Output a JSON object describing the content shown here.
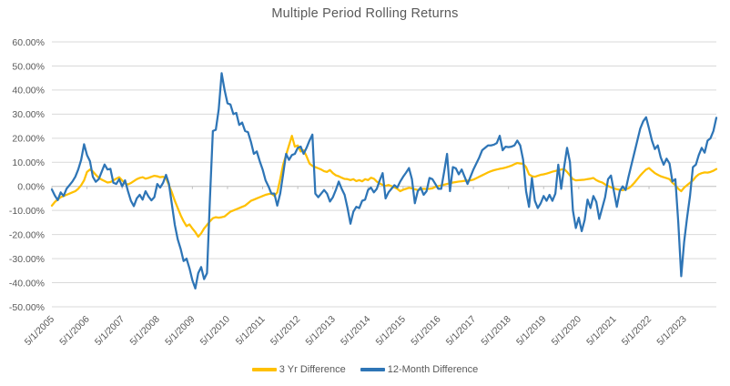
{
  "chart_data": {
    "type": "line",
    "title": "Multiple Period Rolling Returns",
    "x_frequency": "monthly",
    "x_start": "5/1/2005",
    "x_end": "4/1/2024",
    "x_tick_labels": [
      "5/1/2005",
      "5/1/2006",
      "5/1/2007",
      "5/1/2008",
      "5/1/2009",
      "5/1/2010",
      "5/1/2011",
      "5/1/2012",
      "5/1/2013",
      "5/1/2014",
      "5/1/2015",
      "5/1/2016",
      "5/1/2017",
      "5/1/2018",
      "5/1/2019",
      "5/1/2020",
      "5/1/2021",
      "5/1/2022",
      "5/1/2023"
    ],
    "y_tick_labels": [
      "60.00%",
      "50.00%",
      "40.00%",
      "30.00%",
      "20.00%",
      "10.00%",
      "0.00%",
      "-10.00%",
      "-20.00%",
      "-30.00%",
      "-40.00%",
      "-50.00%"
    ],
    "ylim": [
      -50,
      60
    ],
    "y_step": 10,
    "grid": true,
    "legend_position": "bottom",
    "colors": {
      "grid": "#D9D9D9",
      "axis": "#BFBFBF",
      "text": "#595959",
      "background": "#FFFFFF"
    },
    "series": [
      {
        "name": "3 Yr Difference",
        "color": "#FFC000",
        "values_unit": "percent",
        "values": [
          -8,
          -6.5,
          -5.5,
          -4.5,
          -4,
          -3.5,
          -3,
          -2.5,
          -2,
          -1,
          0.5,
          2.5,
          6,
          7,
          6.2,
          4.8,
          3.6,
          2.8,
          2.2,
          1.6,
          1.8,
          2.5,
          3.2,
          3.8,
          2.5,
          1.2,
          0.8,
          1.4,
          2.2,
          3,
          3.5,
          3.8,
          3.2,
          3.5,
          4,
          4.4,
          4.2,
          3.8,
          4,
          3.4,
          0.5,
          -2.5,
          -6,
          -9,
          -12,
          -14.5,
          -16.5,
          -15.8,
          -17.5,
          -19,
          -20.9,
          -19.5,
          -17.5,
          -16,
          -14.5,
          -13.2,
          -12.8,
          -13,
          -12.8,
          -12.5,
          -11.5,
          -10.5,
          -10,
          -9.5,
          -9,
          -8.5,
          -8,
          -7,
          -6,
          -5.5,
          -5,
          -4.5,
          -4,
          -3.5,
          -3.2,
          -3,
          -4,
          -2.5,
          3,
          9,
          13,
          17,
          21,
          16.5,
          17,
          14.5,
          15,
          12.5,
          9.5,
          8.5,
          8,
          7.5,
          7,
          6.3,
          6,
          6.8,
          5.5,
          4.6,
          4.2,
          3.6,
          3.1,
          3,
          2.6,
          3,
          2.2,
          2.6,
          2.1,
          3,
          2.6,
          3.6,
          3.2,
          2,
          1.2,
          0.6,
          0.2,
          0.6,
          0.1,
          -0.4,
          -1,
          -2,
          -1.4,
          -1,
          -0.6,
          -0.8,
          -1.2,
          -1.5,
          -1.2,
          -1,
          -1.1,
          -1,
          -0.8,
          -0.2,
          0.1,
          0.4,
          0.7,
          1,
          1.3,
          1.6,
          1.8,
          2,
          2.1,
          2.3,
          2.4,
          2.5,
          2.8,
          3.4,
          4,
          4.6,
          5.2,
          5.8,
          6.3,
          6.7,
          7,
          7.3,
          7.5,
          7.8,
          8.2,
          8.6,
          9.2,
          9.7,
          9.5,
          9.4,
          8,
          5,
          4.2,
          4,
          4.4,
          4.8,
          5,
          5.3,
          5.7,
          6.1,
          6.4,
          6.7,
          7,
          7.2,
          6,
          4.5,
          3,
          2.5,
          2.6,
          2.7,
          2.8,
          3,
          3.2,
          3.5,
          2.6,
          2,
          1.6,
          0.8,
          0.2,
          -0.4,
          -0.8,
          -1.2,
          -1.4,
          -1.6,
          -1.2,
          -0.8,
          0.2,
          1.5,
          3,
          4.5,
          5.8,
          7,
          7.6,
          6.5,
          5.5,
          4.8,
          4.2,
          3.8,
          3.4,
          3,
          1.5,
          0.5,
          -1,
          -2,
          -0.5,
          0.5,
          1.5,
          2.5,
          4,
          5,
          5.5,
          5.8,
          5.7,
          6,
          6.5,
          7.2
        ]
      },
      {
        "name": "12-Month Difference",
        "color": "#2E75B6",
        "values_unit": "percent",
        "values": [
          -1.3,
          -3.8,
          -5.7,
          -2.5,
          -4,
          -1,
          0.5,
          2,
          4,
          7,
          11,
          17.5,
          13,
          10.5,
          4,
          1.9,
          3,
          6,
          9.1,
          7,
          7.3,
          1.5,
          1,
          3,
          0,
          2.5,
          -2,
          -6,
          -8.2,
          -5,
          -3.5,
          -5.5,
          -2,
          -4.2,
          -5.8,
          -4.5,
          1,
          -0.5,
          1.5,
          4.8,
          1,
          -7.5,
          -16,
          -22,
          -26,
          -31,
          -30,
          -34,
          -39,
          -42.4,
          -36,
          -33.5,
          -38.5,
          -36,
          -5,
          23,
          23.5,
          32,
          47,
          40,
          34.5,
          34,
          30,
          30.5,
          25.5,
          26.5,
          23,
          22.5,
          18.5,
          13.5,
          14.5,
          10.5,
          7,
          2.5,
          0,
          -3,
          -3,
          -8,
          -3,
          5,
          13.5,
          11,
          13,
          13.5,
          16,
          16.5,
          13.5,
          16,
          19,
          21.5,
          -3,
          -4.5,
          -3,
          -1.5,
          -3,
          -6.3,
          -4.5,
          -1.5,
          2,
          -1,
          -3.5,
          -9,
          -15.5,
          -10.5,
          -8.5,
          -9,
          -6,
          -5.5,
          -1.5,
          -0.5,
          -2.5,
          -1,
          2.5,
          5.5,
          -5,
          -2.5,
          -1,
          0.5,
          -0.5,
          2,
          4,
          5.7,
          7.6,
          3,
          -7,
          -2,
          -0.5,
          -3.5,
          -2,
          3.5,
          3,
          1,
          -1,
          -1,
          6,
          13.5,
          -2,
          8,
          7.5,
          5,
          7,
          4,
          1,
          4,
          7,
          9.5,
          12,
          15,
          16,
          17,
          17,
          17.3,
          18,
          21,
          15,
          16.5,
          16.3,
          16.5,
          17,
          19,
          17,
          11,
          -2,
          -8.5,
          3.5,
          -6,
          -9,
          -7,
          -4,
          -6,
          -3.5,
          -6,
          -3,
          9,
          -1,
          8,
          16,
          10,
          -10,
          -17.3,
          -13,
          -18.6,
          -14,
          -5.5,
          -9,
          -4,
          -6.5,
          -13.5,
          -9,
          -4.5,
          3,
          4.5,
          -2,
          -8.5,
          -2,
          0,
          -1.5,
          4,
          9,
          14,
          19,
          24,
          27,
          28.7,
          24,
          19,
          15.5,
          17,
          12,
          9,
          11.5,
          9.5,
          2,
          3,
          -15,
          -37.3,
          -23,
          -13,
          -4,
          8,
          9,
          13,
          16,
          14,
          19,
          20,
          23,
          28.5
        ]
      }
    ]
  }
}
